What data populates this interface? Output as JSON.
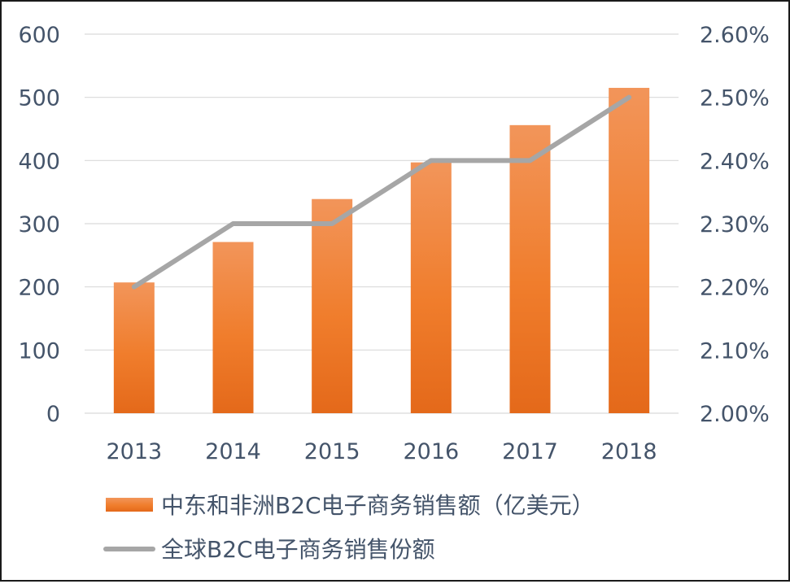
{
  "chart_data": {
    "type": "bar",
    "categories": [
      "2013",
      "2014",
      "2015",
      "2016",
      "2017",
      "2018"
    ],
    "series": [
      {
        "name": "中东和非洲B2C电子商务销售额（亿美元）",
        "kind": "bar",
        "axis": "left",
        "values": [
          207,
          271,
          339,
          397,
          456,
          515
        ],
        "color": "#f07d2c"
      },
      {
        "name": "全球B2C电子商务销售份额",
        "kind": "line",
        "axis": "right",
        "values": [
          2.2,
          2.3,
          2.3,
          2.4,
          2.4,
          2.5
        ],
        "color": "#a6a6a6"
      }
    ],
    "y_left": {
      "ylim": [
        0,
        600
      ],
      "ticks": [
        "0",
        "100",
        "200",
        "300",
        "400",
        "500",
        "600"
      ]
    },
    "y_right": {
      "ylim": [
        2.0,
        2.6
      ],
      "ticks": [
        "2.00%",
        "2.10%",
        "2.20%",
        "2.30%",
        "2.40%",
        "2.50%",
        "2.60%"
      ]
    },
    "grid": true,
    "legend": "bottom"
  }
}
